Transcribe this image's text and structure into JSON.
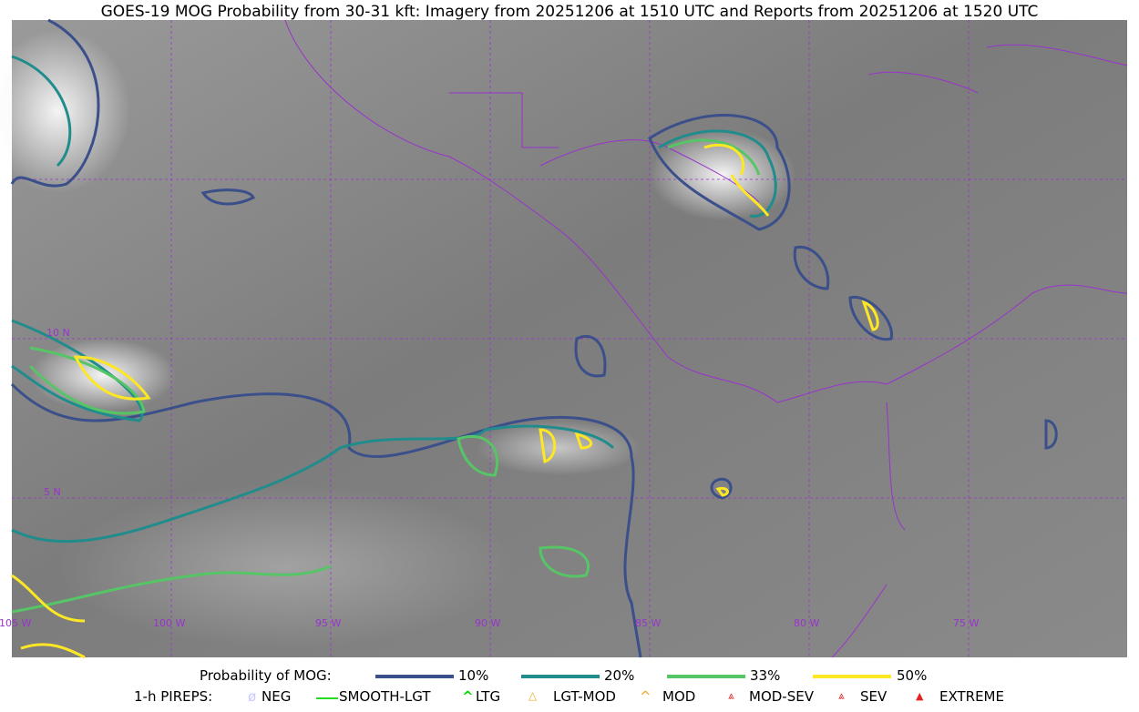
{
  "title": "GOES-19 MOG Probability from 30-31 kft: Imagery from 20251206 at 1510 UTC and Reports from 20251206 at 1520 UTC",
  "map": {
    "lat_labels": [
      "10 N",
      "5 N"
    ],
    "lon_labels": [
      "105 W",
      "100 W",
      "95 W",
      "90 W",
      "85 W",
      "80 W",
      "75 W"
    ],
    "gridline_color": "#9a32cd",
    "border_color": "#9a32cd"
  },
  "legend": {
    "probability_title": "Probability of MOG:",
    "probability_levels": [
      {
        "label": "10%",
        "color": "#3b4f8a"
      },
      {
        "label": "20%",
        "color": "#218c8c"
      },
      {
        "label": "33%",
        "color": "#56c566"
      },
      {
        "label": "50%",
        "color": "#fde725"
      }
    ],
    "pireps_title": "1-h PIREPS:",
    "pireps": [
      {
        "label": "NEG",
        "icon": "neg-circle-icon",
        "color": "#c8c8ff"
      },
      {
        "label": "SMOOTH-LGT",
        "icon": "line-icon",
        "color": "#22dd22"
      },
      {
        "label": "LTG",
        "icon": "caret-icon",
        "color": "#00dd00"
      },
      {
        "label": "LGT-MOD",
        "icon": "triangle-bar-icon",
        "color": "#f5a623"
      },
      {
        "label": "MOD",
        "icon": "caret-bar-icon",
        "color": "#f5a623"
      },
      {
        "label": "MOD-SEV",
        "icon": "double-caret-icon",
        "color": "#e52222"
      },
      {
        "label": "SEV",
        "icon": "double-caret-icon",
        "color": "#e52222"
      },
      {
        "label": "EXTREME",
        "icon": "filled-triangle-icon",
        "color": "#e52222"
      }
    ]
  }
}
